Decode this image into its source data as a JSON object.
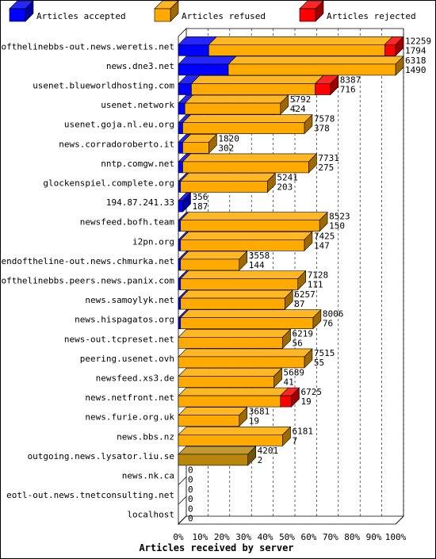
{
  "chart_data": {
    "type": "bar",
    "stacked": true,
    "orientation": "horizontal",
    "xlabel": "Articles received by server",
    "xlim": [
      0,
      100
    ],
    "x_ticks": [
      "0%",
      "10%",
      "20%",
      "30%",
      "40%",
      "50%",
      "60%",
      "70%",
      "80%",
      "90%",
      "100%"
    ],
    "legend_position": "top",
    "colors": {
      "accepted": "#0000ff",
      "refused": "#ffaa00",
      "rejected": "#ff0000",
      "neutral": "#b8860b"
    },
    "series": [
      {
        "name": "Articles accepted",
        "key": "accepted"
      },
      {
        "name": "Articles refused",
        "key": "refused"
      },
      {
        "name": "Articles rejected",
        "key": "rejected"
      }
    ],
    "rows": [
      {
        "server": "endofthelinebbs-out.news.weretis.net",
        "accepted": 14,
        "refused": 81,
        "rejected": 5,
        "label1": "12259",
        "label2": "1794"
      },
      {
        "server": "news.dne3.net",
        "accepted": 23,
        "refused": 77,
        "rejected": 0,
        "label1": "6318",
        "label2": "1490"
      },
      {
        "server": "usenet.blueworldhosting.com",
        "accepted": 6,
        "refused": 57,
        "rejected": 7,
        "label1": "8387",
        "label2": "716"
      },
      {
        "server": "usenet.network",
        "accepted": 3,
        "refused": 44,
        "rejected": 0,
        "label1": "5792",
        "label2": "424"
      },
      {
        "server": "usenet.goja.nl.eu.org",
        "accepted": 2,
        "refused": 56,
        "rejected": 0,
        "label1": "7578",
        "label2": "378"
      },
      {
        "server": "news.corradoroberto.it",
        "accepted": 2,
        "refused": 12,
        "rejected": 0,
        "label1": "1820",
        "label2": "302"
      },
      {
        "server": "nntp.comgw.net",
        "accepted": 2,
        "refused": 58,
        "rejected": 0,
        "label1": "7731",
        "label2": "275"
      },
      {
        "server": "glockenspiel.complete.org",
        "accepted": 1,
        "refused": 40,
        "rejected": 0,
        "label1": "5241",
        "label2": "203"
      },
      {
        "server": "194.87.241.33",
        "accepted": 2,
        "refused": 0,
        "rejected": 0,
        "label1": "356",
        "label2": "187"
      },
      {
        "server": "newsfeed.bofh.team",
        "accepted": 1,
        "refused": 64,
        "rejected": 0,
        "label1": "8523",
        "label2": "150"
      },
      {
        "server": "i2pn.org",
        "accepted": 1,
        "refused": 57,
        "rejected": 0,
        "label1": "7425",
        "label2": "147"
      },
      {
        "server": "endoftheline-out.news.chmurka.net",
        "accepted": 1,
        "refused": 27,
        "rejected": 0,
        "label1": "3558",
        "label2": "144"
      },
      {
        "server": "endofthelinebbs.peers.news.panix.com",
        "accepted": 1,
        "refused": 54,
        "rejected": 0,
        "label1": "7128",
        "label2": "111"
      },
      {
        "server": "news.samoylyk.net",
        "accepted": 1,
        "refused": 48,
        "rejected": 0,
        "label1": "6257",
        "label2": "87"
      },
      {
        "server": "news.hispagatos.org",
        "accepted": 1,
        "refused": 61,
        "rejected": 0,
        "label1": "8006",
        "label2": "76"
      },
      {
        "server": "news-out.tcpreset.net",
        "accepted": 0,
        "refused": 48,
        "rejected": 0,
        "label1": "6219",
        "label2": "56"
      },
      {
        "server": "peering.usenet.ovh",
        "accepted": 0,
        "refused": 58,
        "rejected": 0,
        "label1": "7515",
        "label2": "55"
      },
      {
        "server": "newsfeed.xs3.de",
        "accepted": 0,
        "refused": 44,
        "rejected": 0,
        "label1": "5689",
        "label2": "41"
      },
      {
        "server": "news.netfront.net",
        "accepted": 0,
        "refused": 47,
        "rejected": 5,
        "label1": "6725",
        "label2": "19"
      },
      {
        "server": "news.furie.org.uk",
        "accepted": 0,
        "refused": 28,
        "rejected": 0,
        "label1": "3681",
        "label2": "19"
      },
      {
        "server": "news.bbs.nz",
        "accepted": 0,
        "refused": 48,
        "rejected": 0,
        "label1": "6181",
        "label2": "7"
      },
      {
        "server": "outgoing.news.lysator.liu.se",
        "accepted": 0,
        "refused": 32,
        "rejected": 0,
        "neutral": true,
        "label1": "4201",
        "label2": "2"
      },
      {
        "server": "news.nk.ca",
        "accepted": 0,
        "refused": 0,
        "rejected": 0,
        "label1": "0",
        "label2": "0"
      },
      {
        "server": "eotl-out.news.tnetconsulting.net",
        "accepted": 0,
        "refused": 0,
        "rejected": 0,
        "label1": "0",
        "label2": "0"
      },
      {
        "server": "localhost",
        "accepted": 0,
        "refused": 0,
        "rejected": 0,
        "label1": "0",
        "label2": "0"
      }
    ]
  }
}
